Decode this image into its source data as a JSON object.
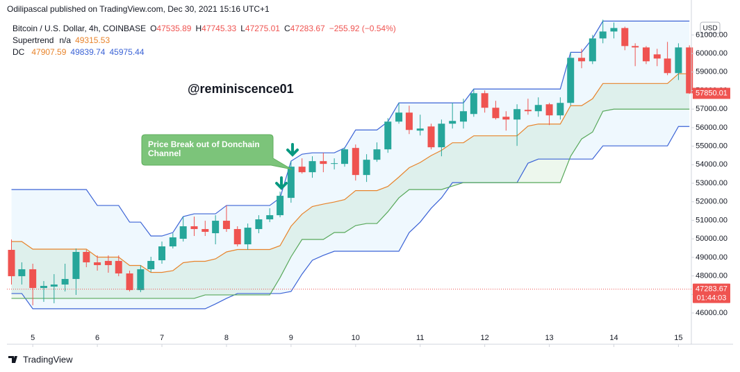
{
  "header": {
    "published": "Odilipascal published on TradingView.com, Dec 30, 2021 15:16 UTC+1"
  },
  "legend": {
    "symbol": "Bitcoin / U.S. Dollar, 4h, COINBASE",
    "ohlc": [
      [
        "O",
        47535.89
      ],
      [
        "H",
        47745.33
      ],
      [
        "L",
        47275.01
      ],
      [
        "C",
        47283.67
      ]
    ],
    "change": "−255.92 (−0.54%)",
    "supertrend": [
      "Supertrend",
      "n/a",
      49315.53
    ],
    "dc": [
      "DC",
      47907.59,
      49839.74,
      45975.44
    ]
  },
  "watermark": "@reminiscence01",
  "annotation": [
    "Price Break out of Donchain",
    "Channel"
  ],
  "currency": "USD",
  "price_line": {
    "value": 47283.67,
    "countdown": "01:44:03"
  },
  "footer": "TradingView",
  "chart_data": {
    "type": "candlestick",
    "up_color": "#26a69a",
    "down_color": "#ef5350",
    "x": [
      4.67,
      4.83,
      5,
      5.17,
      5.33,
      5.5,
      5.67,
      5.83,
      6,
      6.17,
      6.33,
      6.5,
      6.67,
      6.83,
      7,
      7.17,
      7.33,
      7.5,
      7.67,
      7.83,
      8,
      8.17,
      8.33,
      8.5,
      8.67,
      8.83,
      9,
      9.17,
      9.33,
      9.5,
      9.67,
      9.83,
      10,
      10.17,
      10.33,
      10.5,
      10.67,
      10.83,
      11,
      11.17,
      11.33,
      11.5,
      11.67,
      11.83,
      12,
      12.17,
      12.33,
      12.5,
      12.67,
      12.83,
      13,
      13.17,
      13.33,
      13.5,
      13.67,
      13.83,
      14,
      14.17,
      14.33,
      14.5,
      14.67,
      14.83,
      15,
      15.17
    ],
    "open": [
      49406,
      47985,
      48359,
      47349,
      47424,
      47536,
      47835,
      49294,
      48733,
      48808,
      48808,
      48134,
      47237,
      48359,
      48845,
      49593,
      50004,
      50678,
      50528,
      50304,
      50977,
      50528,
      49705,
      50528,
      51052,
      51276,
      52211,
      53894,
      53595,
      54193,
      54044,
      54044,
      54904,
      53445,
      54268,
      54829,
      56325,
      56811,
      55839,
      56063,
      54941,
      56213,
      56325,
      56736,
      57858,
      57073,
      56587,
      56437,
      56961,
      56886,
      57260,
      56662,
      57335,
      59766,
      59579,
      60813,
      61187,
      61374,
      60402,
      60327,
      59953,
      59728,
      58943,
      60327
    ],
    "high": [
      49967,
      48733,
      48658,
      47723,
      48097,
      48658,
      49481,
      49406,
      49107,
      49107,
      49107,
      48284,
      48583,
      49032,
      49855,
      50304,
      51201,
      51201,
      50977,
      51276,
      51800,
      50678,
      50827,
      51276,
      51650,
      52548,
      54193,
      54343,
      54455,
      54642,
      54343,
      54941,
      55091,
      54567,
      55203,
      56512,
      57335,
      57185,
      56699,
      56213,
      56437,
      57335,
      57559,
      58083,
      58008,
      57447,
      56886,
      57260,
      57559,
      57634,
      57335,
      57634,
      60065,
      60252,
      61000,
      61823,
      61673,
      61449,
      60551,
      60402,
      60252,
      60626,
      60551,
      60439
    ],
    "low": [
      47536,
      47536,
      46414,
      46601,
      46526,
      47162,
      46975,
      48471,
      48284,
      48172,
      47985,
      47162,
      47125,
      48209,
      48658,
      49481,
      49855,
      50154,
      50154,
      49705,
      50378,
      49593,
      49406,
      50304,
      50902,
      51164,
      51949,
      53520,
      53295,
      53595,
      53744,
      53894,
      53146,
      53071,
      54156,
      54642,
      56213,
      55652,
      55577,
      54829,
      54455,
      55951,
      55951,
      56587,
      56811,
      56437,
      55839,
      55016,
      56699,
      56587,
      56138,
      56437,
      57185,
      59205,
      59429,
      60551,
      60813,
      60177,
      59317,
      59429,
      59317,
      58831,
      58569,
      57821
    ],
    "close": [
      47985,
      48359,
      47349,
      47461,
      47536,
      47835,
      49294,
      48733,
      48583,
      48583,
      48134,
      47237,
      48359,
      48808,
      49593,
      50079,
      50678,
      50528,
      50378,
      50977,
      50528,
      49705,
      50603,
      51052,
      51276,
      52323,
      53894,
      53595,
      54193,
      54044,
      54081,
      54829,
      53445,
      54268,
      54829,
      56325,
      56811,
      55876,
      55951,
      54941,
      56213,
      56362,
      56886,
      57858,
      57073,
      56512,
      56437,
      56998,
      56886,
      57223,
      56662,
      57335,
      59766,
      59579,
      60813,
      61187,
      61374,
      60402,
      60327,
      59579,
      59728,
      58943,
      60327,
      57850.01
    ],
    "lines": [
      {
        "color": "#3b63d6",
        "values": [
          52660,
          52660,
          52660,
          52660,
          52660,
          52660,
          52660,
          52660,
          51800,
          51800,
          51800,
          50902,
          50902,
          50154,
          50154,
          50341,
          51201,
          51351,
          51351,
          51351,
          51800,
          51800,
          51800,
          51800,
          51800,
          52211,
          54193,
          54567,
          54642,
          54642,
          54642,
          54904,
          55876,
          55876,
          55876,
          56325,
          57335,
          57335,
          57335,
          57335,
          57335,
          57335,
          57335,
          58083,
          58083,
          58083,
          58083,
          58083,
          58083,
          58083,
          58083,
          58083,
          60065,
          60065,
          60813,
          61748,
          61748,
          61748,
          61748,
          61748,
          61748,
          61748,
          61748,
          61748
        ]
      },
      {
        "color": "#e8832a",
        "values": [
          49855,
          49855,
          49444,
          49444,
          49444,
          49444,
          49444,
          49444,
          49014,
          49014,
          49014,
          48565,
          48565,
          48190,
          48190,
          48284,
          48714,
          48789,
          48789,
          48920,
          49294,
          49425,
          49425,
          49425,
          49425,
          49631,
          50678,
          51332,
          51744,
          51875,
          51987,
          52118,
          52604,
          52604,
          52604,
          52828,
          53333,
          53838,
          54119,
          54493,
          54773,
          55185,
          55185,
          55559,
          55559,
          55559,
          55559,
          55559,
          56082,
          56194,
          56194,
          56194,
          57185,
          57185,
          57559,
          58382,
          58382,
          58382,
          58382,
          58382,
          58382,
          58382,
          58906,
          58906
        ]
      },
      {
        "color": "#3b63d6",
        "values": [
          47050,
          47050,
          46227,
          46227,
          46227,
          46227,
          46227,
          46227,
          46227,
          46227,
          46227,
          46227,
          46227,
          46227,
          46227,
          46227,
          46227,
          46227,
          46227,
          46489,
          46788,
          47050,
          47050,
          47050,
          47050,
          47050,
          47162,
          48097,
          48845,
          49107,
          49331,
          49331,
          49331,
          49331,
          49331,
          49331,
          49331,
          50341,
          50902,
          51650,
          52211,
          53034,
          53034,
          53034,
          53034,
          53034,
          53034,
          53034,
          54081,
          54305,
          54305,
          54305,
          54305,
          54305,
          54305,
          55016,
          55016,
          55016,
          55016,
          55016,
          55016,
          55016,
          56063,
          56063
        ]
      },
      {
        "color": "#57a85a",
        "values": [
          46788,
          46788,
          46788,
          46788,
          46788,
          46788,
          46788,
          46788,
          46788,
          46788,
          46788,
          46788,
          46788,
          46788,
          46788,
          46788,
          46788,
          46788,
          46975,
          46975,
          46975,
          46975,
          46975,
          46975,
          46975,
          47910,
          49032,
          49967,
          49967,
          49967,
          50341,
          50341,
          50715,
          50827,
          50827,
          51463,
          52211,
          52660,
          52660,
          52660,
          52660,
          52847,
          53034,
          53034,
          53034,
          53034,
          53034,
          53034,
          53034,
          53034,
          53034,
          53034,
          54455,
          55390,
          55764,
          56886,
          56998,
          56998,
          56998,
          56998,
          56998,
          56998,
          56998,
          56998
        ]
      }
    ],
    "xlim": [
      4.6,
      15.2
    ],
    "xticks": [
      5,
      6,
      7,
      8,
      9,
      10,
      11,
      12,
      13,
      14,
      15
    ],
    "ylim": [
      45100,
      61950
    ],
    "yticks": [
      {
        "value": 46000,
        "label": "46000.00"
      },
      {
        "value": 47000,
        "label": "47000.00"
      },
      {
        "value": 48000,
        "label": "48000.00"
      },
      {
        "value": 49000,
        "label": "49000.00"
      },
      {
        "value": 50000,
        "label": "50000.00"
      },
      {
        "value": 51000,
        "label": "51000.00"
      },
      {
        "value": 52000,
        "label": "52000.00"
      },
      {
        "value": 53000,
        "label": "53000.00"
      },
      {
        "value": 54000,
        "label": "54000.00"
      },
      {
        "value": 55000,
        "label": "55000.00"
      },
      {
        "value": 56000,
        "label": "56000.00"
      },
      {
        "value": 57000,
        "label": "57000.00"
      },
      {
        "value": 58000,
        "label": "58000.00"
      },
      {
        "value": 59000,
        "label": "59000.00"
      },
      {
        "value": 60000,
        "label": "60000.00"
      },
      {
        "value": 61000,
        "label": "61000.00"
      }
    ],
    "grid": false
  }
}
